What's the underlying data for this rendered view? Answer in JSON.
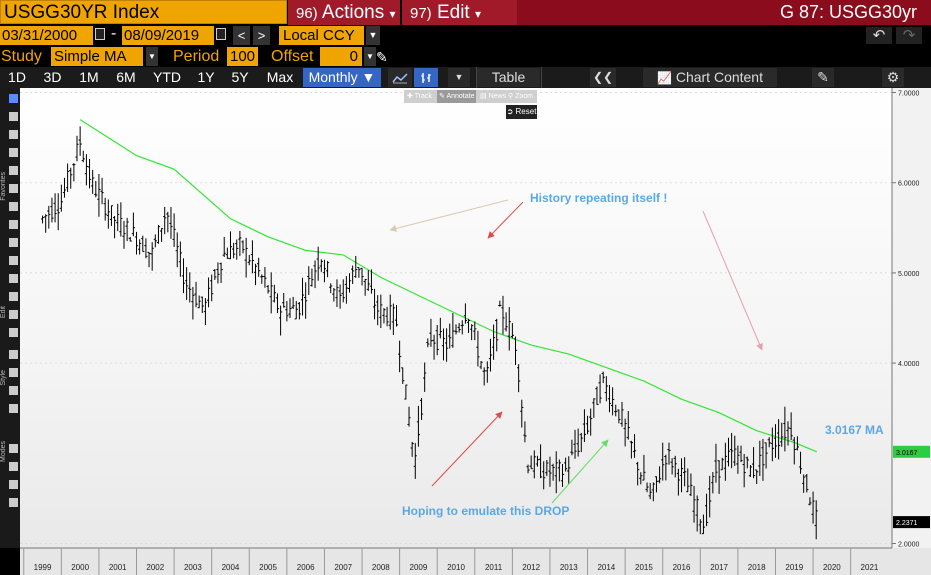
{
  "header": {
    "ticker": "USGG30YR Index",
    "actions_num": "96)",
    "actions_label": "Actions",
    "edit_num": "97)",
    "edit_label": "Edit",
    "right_title": "G 87: USGG30yr"
  },
  "dates": {
    "start": "03/31/2000",
    "end": "08/09/2019",
    "separator": "-",
    "prev": "<",
    "next": ">",
    "currency": "Local CCY"
  },
  "study": {
    "label": "Study",
    "value": "Simple MA",
    "period_label": "Period",
    "period_value": "100",
    "offset_label": "Offset",
    "offset_value": "0"
  },
  "toolbar": {
    "periods": [
      "1D",
      "3D",
      "1M",
      "6M",
      "YTD",
      "1Y",
      "5Y",
      "Max"
    ],
    "frequency": "Monthly ▼",
    "table_label": "Table",
    "collapse": "❮❮",
    "chart_content_label": "Chart Content"
  },
  "chart_tools": {
    "track": "Track",
    "annotate": "Annotate",
    "news": "News",
    "zoom": "Zoom",
    "reset": "Reset"
  },
  "side_labels": {
    "favorites": "Favorites",
    "edit": "Edit",
    "style": "Style",
    "modes": "Modes"
  },
  "annotations": {
    "history": "History repeating itself !",
    "hoping": "Hoping to emulate this DROP",
    "ma_label": "3.0167 MA"
  },
  "chart_data": {
    "type": "ohlc",
    "title": "",
    "x_axis_years": [
      "1999",
      "2000",
      "2001",
      "2002",
      "2003",
      "2004",
      "2005",
      "2006",
      "2007",
      "2008",
      "2009",
      "2010",
      "2011",
      "2012",
      "2013",
      "2014",
      "2015",
      "2016",
      "2017",
      "2018",
      "2019",
      "2020",
      "2021"
    ],
    "y_ticks": [
      "7.0000",
      "6.0000",
      "5.0000",
      "4.0000",
      "2.0000"
    ],
    "ylim": [
      1.95,
      7.05
    ],
    "last_price": "2.2371",
    "ma_value": "3.0167",
    "ma_color": "#33e633",
    "price_color": "#000000",
    "price_anchors": [
      [
        1999.0,
        5.6
      ],
      [
        1999.5,
        5.8
      ],
      [
        2000.0,
        6.45
      ],
      [
        2000.3,
        6.0
      ],
      [
        2000.9,
        5.6
      ],
      [
        2001.5,
        5.4
      ],
      [
        2001.9,
        5.2
      ],
      [
        2002.3,
        5.7
      ],
      [
        2002.8,
        4.9
      ],
      [
        2003.3,
        4.6
      ],
      [
        2003.8,
        5.2
      ],
      [
        2004.3,
        5.3
      ],
      [
        2004.9,
        4.9
      ],
      [
        2005.3,
        4.6
      ],
      [
        2005.8,
        4.6
      ],
      [
        2006.4,
        5.2
      ],
      [
        2006.9,
        4.7
      ],
      [
        2007.4,
        5.1
      ],
      [
        2007.9,
        4.6
      ],
      [
        2008.4,
        4.5
      ],
      [
        2008.9,
        2.9
      ],
      [
        2009.3,
        4.3
      ],
      [
        2009.8,
        4.2
      ],
      [
        2010.3,
        4.6
      ],
      [
        2010.8,
        3.8
      ],
      [
        2011.2,
        4.6
      ],
      [
        2011.6,
        4.2
      ],
      [
        2011.9,
        2.9
      ],
      [
        2012.4,
        2.8
      ],
      [
        2012.9,
        2.8
      ],
      [
        2013.5,
        3.3
      ],
      [
        2013.9,
        3.8
      ],
      [
        2014.4,
        3.4
      ],
      [
        2014.9,
        2.8
      ],
      [
        2015.2,
        2.5
      ],
      [
        2015.6,
        3.0
      ],
      [
        2016.1,
        2.7
      ],
      [
        2016.6,
        2.2
      ],
      [
        2016.9,
        2.8
      ],
      [
        2017.4,
        3.0
      ],
      [
        2017.9,
        2.8
      ],
      [
        2018.4,
        3.1
      ],
      [
        2018.9,
        3.3
      ],
      [
        2019.1,
        3.0
      ],
      [
        2019.6,
        2.24
      ]
    ],
    "ma_anchors": [
      [
        2000.0,
        6.7
      ],
      [
        2001.5,
        6.3
      ],
      [
        2002.5,
        6.15
      ],
      [
        2004.0,
        5.6
      ],
      [
        2005.0,
        5.4
      ],
      [
        2006.0,
        5.25
      ],
      [
        2007.0,
        5.2
      ],
      [
        2008.0,
        4.95
      ],
      [
        2009.0,
        4.75
      ],
      [
        2010.0,
        4.55
      ],
      [
        2011.0,
        4.35
      ],
      [
        2012.0,
        4.2
      ],
      [
        2013.0,
        4.1
      ],
      [
        2014.0,
        3.95
      ],
      [
        2015.0,
        3.8
      ],
      [
        2016.0,
        3.6
      ],
      [
        2017.0,
        3.45
      ],
      [
        2018.0,
        3.25
      ],
      [
        2019.0,
        3.12
      ],
      [
        2019.6,
        3.0167
      ]
    ]
  }
}
